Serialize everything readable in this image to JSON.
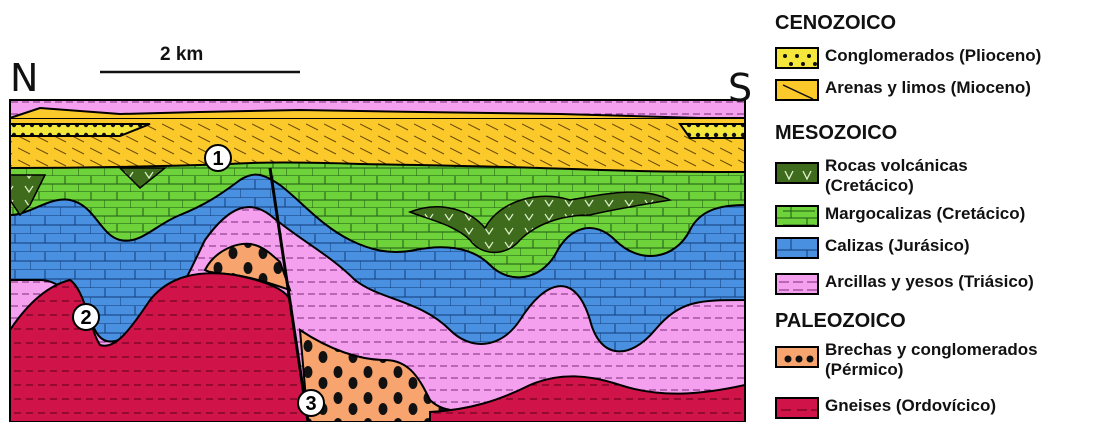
{
  "section": {
    "north_label": "N",
    "south_label": "S",
    "scale_label": "2 km",
    "markers": [
      "1",
      "2",
      "3"
    ]
  },
  "legend": {
    "groups": [
      {
        "era": "CENOZOICO",
        "items": [
          {
            "label": "Conglomerados (Plioceno)",
            "color": "#f5e63c",
            "pattern": "dots"
          },
          {
            "label": "Arenas y limos (Mioceno)",
            "color": "#fcc92b",
            "pattern": "diagonal"
          }
        ]
      },
      {
        "era": "MESOZOICO",
        "items": [
          {
            "label": "Rocas volcánicas",
            "label2": "(Cretácico)",
            "color": "#3f6b1c",
            "pattern": "v"
          },
          {
            "label": "Margocalizas (Cretácico)",
            "color": "#6ed23a",
            "pattern": "bricks"
          },
          {
            "label": "Calizas (Jurásico)",
            "color": "#4a90e0",
            "pattern": "bricks"
          },
          {
            "label": "Arcillas y yesos (Triásico)",
            "color": "#f5a0ee",
            "pattern": "dashed"
          }
        ]
      },
      {
        "era": "PALEOZOICO",
        "items": [
          {
            "label": "Brechas y conglomerados",
            "label2": "(Pérmico)",
            "color": "#f7a46e",
            "pattern": "bigdots"
          },
          {
            "label": "Gneises (Ordovícico)",
            "color": "#d0144a",
            "pattern": "dashlines"
          }
        ]
      }
    ]
  }
}
